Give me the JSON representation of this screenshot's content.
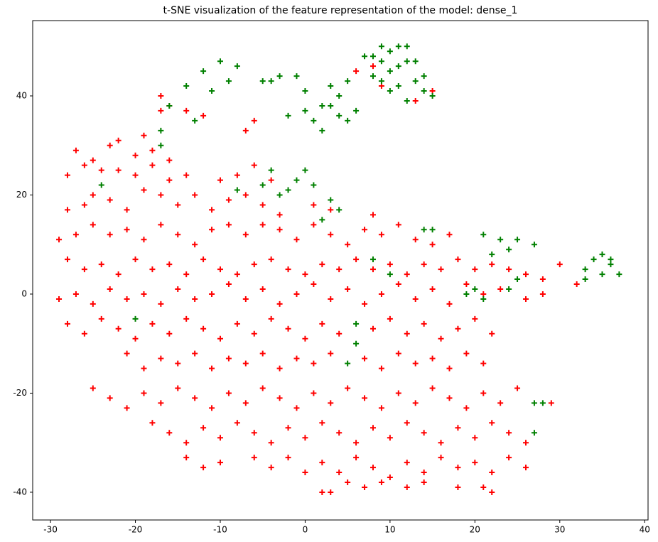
{
  "chart_data": {
    "type": "scatter",
    "title": "t-SNE visualization of the feature representation of the model: dense_1",
    "xlim": [
      -32.1,
      40.4
    ],
    "ylim": [
      -45.6,
      55.2
    ],
    "xticks": [
      -30,
      -20,
      -10,
      0,
      10,
      20,
      30,
      40
    ],
    "yticks": [
      -40,
      -20,
      0,
      20,
      40
    ],
    "marker": "+",
    "series": [
      {
        "color": "#ff0000",
        "x": [
          -17,
          -17,
          -14,
          -12,
          -6,
          -16,
          8,
          9,
          15,
          13,
          6,
          -23,
          -22,
          -19,
          -20,
          -16,
          -18,
          -25,
          -27,
          -7,
          -28,
          -26,
          -24,
          -22,
          -20,
          -18,
          -16,
          -14,
          -10,
          -8,
          -6,
          -4,
          -28,
          -26,
          -25,
          -23,
          -21,
          -19,
          -17,
          -15,
          -13,
          -11,
          -9,
          -7,
          -5,
          -3,
          1,
          3,
          8,
          -29,
          -27,
          -25,
          -23,
          -21,
          -19,
          -17,
          -15,
          -13,
          -11,
          -9,
          -7,
          -5,
          -3,
          -1,
          1,
          3,
          5,
          7,
          9,
          11,
          13,
          15,
          17,
          -28,
          -26,
          -24,
          -22,
          -20,
          -18,
          -16,
          -14,
          -12,
          -10,
          -8,
          -6,
          -4,
          -2,
          0,
          2,
          4,
          6,
          8,
          10,
          12,
          14,
          16,
          18,
          20,
          22,
          24,
          26,
          28,
          30,
          32,
          -29,
          -27,
          -25,
          -23,
          -21,
          -19,
          -17,
          -15,
          -13,
          -11,
          -9,
          -7,
          -5,
          -3,
          -1,
          1,
          3,
          5,
          7,
          9,
          11,
          13,
          15,
          17,
          19,
          21,
          23,
          26,
          28,
          -28,
          -26,
          -24,
          -22,
          -20,
          -18,
          -16,
          -14,
          -12,
          -10,
          -8,
          -6,
          -4,
          -2,
          0,
          2,
          4,
          8,
          10,
          12,
          14,
          16,
          18,
          20,
          22,
          -21,
          -19,
          -17,
          -15,
          -13,
          -11,
          -9,
          -7,
          -5,
          -3,
          -1,
          1,
          3,
          7,
          9,
          11,
          13,
          15,
          17,
          19,
          21,
          -25,
          -23,
          -21,
          -19,
          -17,
          -15,
          -13,
          -11,
          -9,
          -7,
          -5,
          -3,
          -1,
          1,
          3,
          5,
          7,
          9,
          11,
          13,
          15,
          17,
          19,
          21,
          23,
          25,
          29,
          -18,
          -16,
          -14,
          -12,
          -10,
          -8,
          -6,
          -4,
          -2,
          0,
          2,
          4,
          6,
          8,
          10,
          12,
          14,
          16,
          18,
          20,
          22,
          24,
          26,
          -14,
          -12,
          -10,
          -6,
          -4,
          -2,
          0,
          2,
          4,
          6,
          8,
          10,
          12,
          14,
          16,
          18,
          20,
          22,
          24,
          26,
          2,
          3,
          5,
          7,
          9,
          12,
          14,
          18,
          21,
          22
        ],
        "y": [
          40,
          37,
          37,
          36,
          35,
          38,
          46,
          42,
          41,
          39,
          45,
          30,
          31,
          32,
          28,
          27,
          29,
          27,
          29,
          33,
          24,
          26,
          25,
          25,
          24,
          26,
          23,
          24,
          23,
          24,
          26,
          23,
          17,
          18,
          20,
          19,
          17,
          21,
          20,
          18,
          20,
          17,
          19,
          20,
          18,
          16,
          18,
          17,
          16,
          11,
          12,
          14,
          12,
          13,
          11,
          14,
          12,
          10,
          13,
          14,
          12,
          14,
          13,
          11,
          14,
          12,
          10,
          13,
          12,
          14,
          11,
          10,
          12,
          7,
          5,
          6,
          4,
          7,
          5,
          6,
          4,
          7,
          5,
          4,
          6,
          7,
          5,
          4,
          6,
          5,
          7,
          5,
          6,
          4,
          6,
          5,
          7,
          5,
          6,
          5,
          4,
          3,
          6,
          2,
          -1,
          0,
          -2,
          1,
          -1,
          0,
          -2,
          1,
          -1,
          0,
          2,
          -1,
          1,
          -2,
          0,
          2,
          -1,
          1,
          -2,
          0,
          2,
          -1,
          1,
          -2,
          2,
          0,
          1,
          -1,
          0,
          -6,
          -8,
          -5,
          -7,
          -9,
          -6,
          -8,
          -5,
          -7,
          -9,
          -6,
          -8,
          -5,
          -7,
          -9,
          -6,
          -8,
          -7,
          -5,
          -8,
          -6,
          -9,
          -7,
          -5,
          -8,
          -12,
          -15,
          -13,
          -14,
          -12,
          -15,
          -13,
          -14,
          -12,
          -15,
          -13,
          -14,
          -12,
          -13,
          -15,
          -12,
          -14,
          -13,
          -15,
          -12,
          -14,
          -19,
          -21,
          -23,
          -20,
          -22,
          -19,
          -21,
          -23,
          -20,
          -22,
          -19,
          -21,
          -23,
          -20,
          -22,
          -19,
          -21,
          -23,
          -20,
          -22,
          -19,
          -21,
          -23,
          -20,
          -22,
          -19,
          -22,
          -26,
          -28,
          -30,
          -27,
          -29,
          -26,
          -28,
          -30,
          -27,
          -29,
          -26,
          -28,
          -30,
          -27,
          -29,
          -26,
          -28,
          -30,
          -27,
          -29,
          -26,
          -28,
          -30,
          -33,
          -35,
          -34,
          -33,
          -35,
          -33,
          -36,
          -34,
          -36,
          -33,
          -35,
          -37,
          -34,
          -36,
          -33,
          -35,
          -34,
          -36,
          -33,
          -35,
          -40,
          -40,
          -38,
          -39,
          -38,
          -39,
          -38,
          -39,
          -39,
          -40
        ]
      },
      {
        "color": "#008000",
        "x": [
          -12,
          -10,
          -14,
          -16,
          -13,
          -11,
          -9,
          -8,
          -17,
          -4,
          -3,
          -1,
          0,
          -2,
          0,
          1,
          2,
          3,
          4,
          5,
          6,
          4,
          5,
          3,
          -5,
          2,
          8,
          9,
          10,
          11,
          12,
          10,
          9,
          11,
          13,
          14,
          15,
          12,
          10,
          13,
          8,
          11,
          9,
          7,
          14,
          12,
          -8,
          -5,
          -4,
          -2,
          0,
          -1,
          -3,
          1,
          3,
          4,
          2,
          15,
          21,
          23,
          24,
          25,
          22,
          27,
          25,
          24,
          19,
          20,
          21,
          33,
          34,
          35,
          36,
          35,
          33,
          37,
          36,
          8,
          10,
          6,
          6,
          5,
          -20,
          28,
          27,
          27,
          14,
          -24,
          -17
        ],
        "y": [
          45,
          47,
          42,
          38,
          35,
          41,
          43,
          46,
          33,
          43,
          44,
          44,
          41,
          36,
          37,
          35,
          38,
          42,
          36,
          35,
          37,
          40,
          43,
          38,
          43,
          33,
          48,
          50,
          49,
          50,
          47,
          45,
          43,
          42,
          43,
          44,
          40,
          39,
          41,
          47,
          44,
          46,
          47,
          48,
          41,
          50,
          21,
          22,
          25,
          21,
          25,
          23,
          20,
          22,
          19,
          17,
          15,
          13,
          12,
          11,
          9,
          11,
          8,
          10,
          3,
          1,
          0,
          1,
          -1,
          5,
          7,
          8,
          6,
          4,
          3,
          4,
          7,
          7,
          4,
          -6,
          -10,
          -14,
          -5,
          -22,
          -28,
          -22,
          13,
          22,
          30
        ]
      }
    ]
  }
}
